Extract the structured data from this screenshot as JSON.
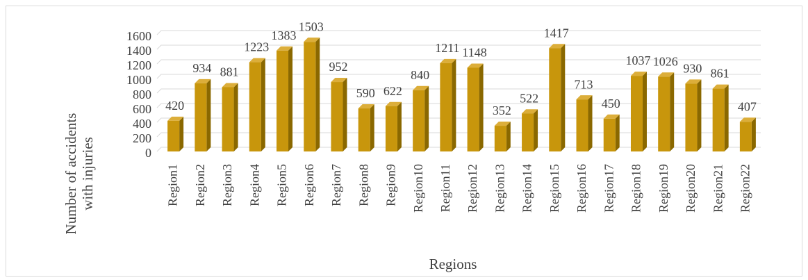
{
  "chart_data": {
    "type": "bar",
    "x_label": "Regions",
    "y_label": "Number of accidents with injuries",
    "categories": [
      "Region1",
      "Region2",
      "Region3",
      "Region4",
      "Region5",
      "Region6",
      "Region7",
      "Region8",
      "Region9",
      "Region10",
      "Region11",
      "Region12",
      "Region13",
      "Region14",
      "Region15",
      "Region16",
      "Region17",
      "Region18",
      "Region19",
      "Region20",
      "Region21",
      "Region22"
    ],
    "values": [
      420,
      934,
      881,
      1223,
      1383,
      1503,
      952,
      590,
      622,
      840,
      1211,
      1148,
      352,
      522,
      1417,
      713,
      450,
      1037,
      1026,
      930,
      861,
      407
    ],
    "color": "#c8960c",
    "ylim": [
      0,
      1600
    ],
    "yticks": [
      0,
      200,
      400,
      600,
      800,
      1000,
      1200,
      1400,
      1600
    ],
    "grid": true
  }
}
